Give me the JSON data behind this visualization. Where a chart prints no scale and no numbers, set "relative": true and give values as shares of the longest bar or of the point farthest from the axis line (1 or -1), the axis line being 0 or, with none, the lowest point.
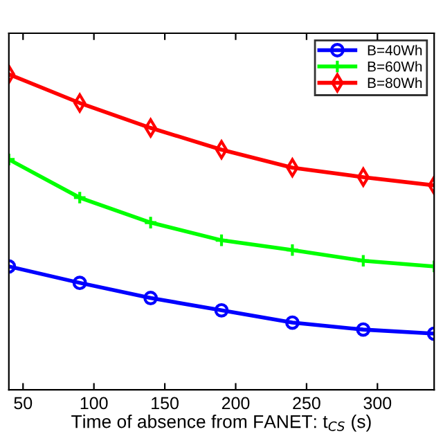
{
  "chart_data": {
    "type": "line",
    "xlabel": "Time of absence from FANET: t$_{CS}$ (s)",
    "x": [
      40,
      90,
      140,
      190,
      240,
      290,
      340
    ],
    "xlim": [
      40,
      340
    ],
    "xticks": [
      50,
      100,
      150,
      200,
      250,
      300
    ],
    "relative": true,
    "tick_labels": "x",
    "grid": false,
    "legend": "top right",
    "line_style": "solid",
    "series": [
      {
        "name": "B=40Wh",
        "color": "#0000ff",
        "marker": "circle",
        "values": [
          0.391,
          0.339,
          0.291,
          0.252,
          0.213,
          0.191,
          0.178
        ]
      },
      {
        "name": "B=60Wh",
        "color": "#00ff00",
        "marker": "cross",
        "values": [
          0.73,
          0.609,
          0.53,
          0.474,
          0.443,
          0.409,
          0.391
        ]
      },
      {
        "name": "B=80Wh",
        "color": "#ff0000",
        "marker": "diamond",
        "values": [
          1.0,
          0.909,
          0.83,
          0.761,
          0.704,
          0.674,
          0.648
        ]
      }
    ]
  }
}
